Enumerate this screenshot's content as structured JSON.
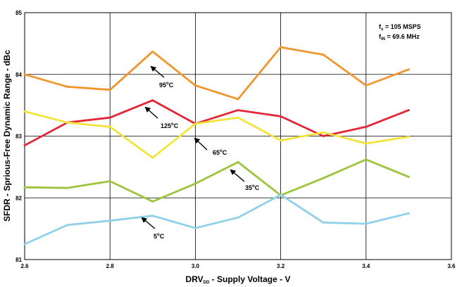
{
  "chart_data": {
    "type": "line",
    "xlabel": {
      "main": "DRV",
      "sub": "DD",
      "rest": " - Supply Voltage - V"
    },
    "ylabel": "SFDR - Sprious-Free Dynamic Range - dBc",
    "xlim": [
      2.6,
      3.6
    ],
    "ylim": [
      81,
      85
    ],
    "xticks": [
      "2.6",
      "2.8",
      "3.0",
      "3.2",
      "3.4",
      "3.6"
    ],
    "yticks": [
      "81",
      "82",
      "83",
      "84",
      "85"
    ],
    "grid": true,
    "x": [
      2.6,
      2.7,
      2.8,
      2.9,
      3.0,
      3.1,
      3.2,
      3.3,
      3.4,
      3.5
    ],
    "series": [
      {
        "name": "95°C",
        "color": "#F0962E",
        "values": [
          84.0,
          83.8,
          83.75,
          84.37,
          83.82,
          83.6,
          84.44,
          84.32,
          83.82,
          84.08
        ]
      },
      {
        "name": "125°C",
        "color": "#E32636",
        "values": [
          82.85,
          83.22,
          83.3,
          83.58,
          83.2,
          83.42,
          83.32,
          83.0,
          83.15,
          83.42
        ]
      },
      {
        "name": "65°C",
        "color": "#F2E43A",
        "values": [
          83.4,
          83.22,
          83.15,
          82.65,
          83.2,
          83.3,
          82.93,
          83.06,
          82.88,
          82.99
        ]
      },
      {
        "name": "35°C",
        "color": "#9CC43C",
        "values": [
          82.17,
          82.16,
          82.27,
          81.94,
          82.23,
          82.58,
          82.04,
          82.32,
          82.62,
          82.34
        ]
      },
      {
        "name": "5°C",
        "color": "#8FD0EA",
        "values": [
          81.25,
          81.56,
          81.63,
          81.71,
          81.51,
          81.68,
          82.05,
          81.6,
          81.58,
          81.75
        ]
      }
    ],
    "annotations": [
      {
        "base": "95",
        "deg": "o",
        "unit": "C"
      },
      {
        "base": "125",
        "deg": "o",
        "unit": "C"
      },
      {
        "base": "65",
        "deg": "o",
        "unit": "C"
      },
      {
        "base": "35",
        "deg": "o",
        "unit": "C"
      },
      {
        "base": "5",
        "deg": "o",
        "unit": "C"
      }
    ],
    "conditions": [
      {
        "main": "f",
        "sub": "s",
        "rest": " = 105 MSPS"
      },
      {
        "main": "f",
        "sub": "IN",
        "rest": " = 69.6 MHz"
      }
    ]
  }
}
